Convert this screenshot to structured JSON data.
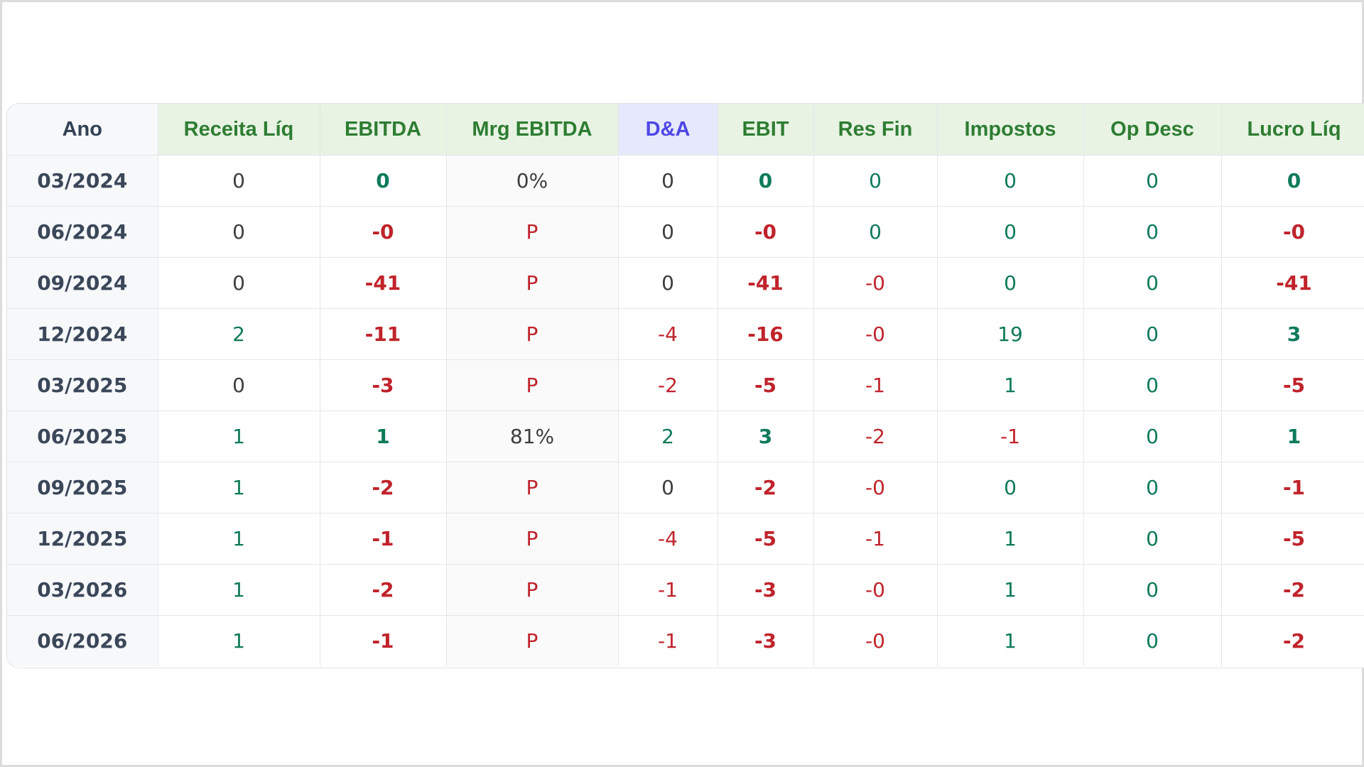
{
  "table": {
    "columns": [
      "Ano",
      "Receita Líq",
      "EBITDA",
      "Mrg EBITDA",
      "D&A",
      "EBIT",
      "Res Fin",
      "Impostos",
      "Op Desc",
      "Lucro Líq"
    ],
    "rows": [
      {
        "ano": "03/2024",
        "receita": "0",
        "ebitda": "0",
        "mrg": "0%",
        "da": "0",
        "ebit": "0",
        "resfin": "0",
        "impostos": "0",
        "opdesc": "0",
        "lucro": "0"
      },
      {
        "ano": "06/2024",
        "receita": "0",
        "ebitda": "-0",
        "mrg": "P",
        "da": "0",
        "ebit": "-0",
        "resfin": "0",
        "impostos": "0",
        "opdesc": "0",
        "lucro": "-0"
      },
      {
        "ano": "09/2024",
        "receita": "0",
        "ebitda": "-41",
        "mrg": "P",
        "da": "0",
        "ebit": "-41",
        "resfin": "-0",
        "impostos": "0",
        "opdesc": "0",
        "lucro": "-41"
      },
      {
        "ano": "12/2024",
        "receita": "2",
        "ebitda": "-11",
        "mrg": "P",
        "da": "-4",
        "ebit": "-16",
        "resfin": "-0",
        "impostos": "19",
        "opdesc": "0",
        "lucro": "3"
      },
      {
        "ano": "03/2025",
        "receita": "0",
        "ebitda": "-3",
        "mrg": "P",
        "da": "-2",
        "ebit": "-5",
        "resfin": "-1",
        "impostos": "1",
        "opdesc": "0",
        "lucro": "-5"
      },
      {
        "ano": "06/2025",
        "receita": "1",
        "ebitda": "1",
        "mrg": "81%",
        "da": "2",
        "ebit": "3",
        "resfin": "-2",
        "impostos": "-1",
        "opdesc": "0",
        "lucro": "1"
      },
      {
        "ano": "09/2025",
        "receita": "1",
        "ebitda": "-2",
        "mrg": "P",
        "da": "0",
        "ebit": "-2",
        "resfin": "-0",
        "impostos": "0",
        "opdesc": "0",
        "lucro": "-1"
      },
      {
        "ano": "12/2025",
        "receita": "1",
        "ebitda": "-1",
        "mrg": "P",
        "da": "-4",
        "ebit": "-5",
        "resfin": "-1",
        "impostos": "1",
        "opdesc": "0",
        "lucro": "-5"
      },
      {
        "ano": "03/2026",
        "receita": "1",
        "ebitda": "-2",
        "mrg": "P",
        "da": "-1",
        "ebit": "-3",
        "resfin": "-0",
        "impostos": "1",
        "opdesc": "0",
        "lucro": "-2"
      },
      {
        "ano": "06/2026",
        "receita": "1",
        "ebitda": "-1",
        "mrg": "P",
        "da": "-1",
        "ebit": "-3",
        "resfin": "-0",
        "impostos": "1",
        "opdesc": "0",
        "lucro": "-2"
      }
    ]
  },
  "colors": {
    "header_green": "#2e7d32",
    "header_blue": "#4f46e5",
    "positive": "#0e7a5a",
    "negative": "#c0232b",
    "neutral": "#3d3d3d"
  }
}
